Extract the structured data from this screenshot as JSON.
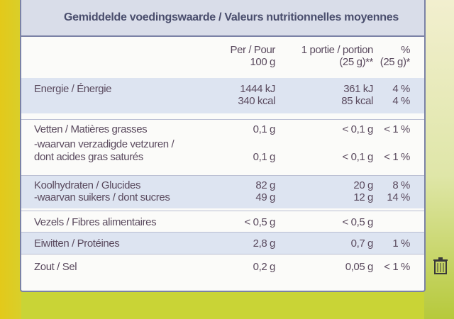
{
  "title": "Gemiddelde voedingswaarde / Valeurs nutritionnelles moyennes",
  "columns": {
    "per100": [
      "Per / Pour",
      "100 g"
    ],
    "portion": [
      "1 portie / portion",
      "(25 g)**"
    ],
    "percent": [
      "%",
      "(25 g)*"
    ]
  },
  "rows": [
    {
      "label": [
        "Energie / Énergie"
      ],
      "per100": [
        "1444 kJ",
        "340 kcal"
      ],
      "portion": [
        "361 kJ",
        "85 kcal"
      ],
      "percent": [
        "4 %",
        "4 %"
      ]
    },
    {
      "label": [
        "Vetten / Matières grasses"
      ],
      "per100": [
        "0,1 g"
      ],
      "portion": [
        "< 0,1 g"
      ],
      "percent": [
        "< 1 %"
      ]
    },
    {
      "label": [
        "-waarvan verzadigde vetzuren /",
        "dont acides gras saturés"
      ],
      "per100": [
        "0,1 g"
      ],
      "portion": [
        "< 0,1 g"
      ],
      "percent": [
        "< 1 %"
      ]
    },
    {
      "label": [
        "Koolhydraten / Glucides",
        "-waarvan suikers / dont sucres"
      ],
      "per100": [
        "82 g",
        "49 g"
      ],
      "portion": [
        "20 g",
        "12 g"
      ],
      "percent": [
        "8 %",
        "14 %"
      ]
    },
    {
      "label": [
        "Vezels / Fibres alimentaires"
      ],
      "per100": [
        "< 0,5 g"
      ],
      "portion": [
        "< 0,5 g"
      ],
      "percent": [
        ""
      ]
    },
    {
      "label": [
        "Eiwitten / Protéines"
      ],
      "per100": [
        "2,8 g"
      ],
      "portion": [
        "0,7 g"
      ],
      "percent": [
        "1 %"
      ]
    },
    {
      "label": [
        "Zout / Sel"
      ],
      "per100": [
        "0,2 g"
      ],
      "portion": [
        "0,05 g"
      ],
      "percent": [
        "< 1 %"
      ]
    }
  ]
}
